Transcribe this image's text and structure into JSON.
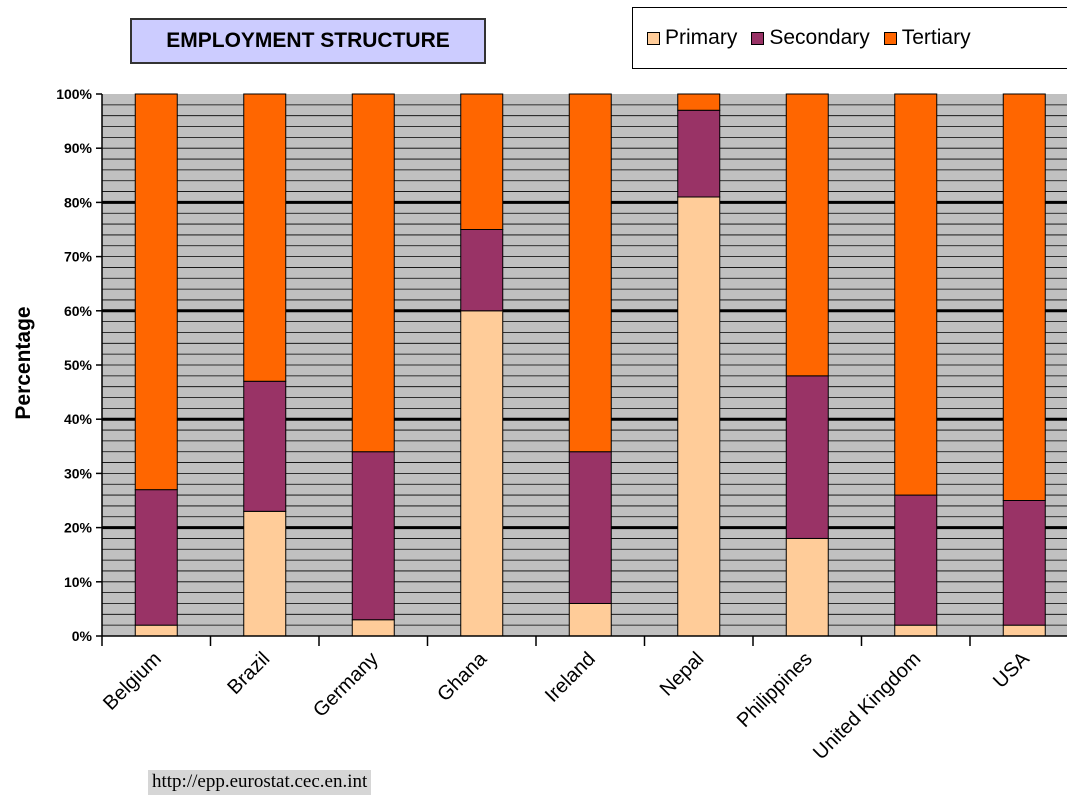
{
  "chart_data": {
    "type": "bar",
    "stacked": true,
    "title": "EMPLOYMENT STRUCTURE",
    "xlabel": "",
    "ylabel": "Percentage",
    "ylim": [
      0,
      100
    ],
    "y_ticks": [
      "0%",
      "10%",
      "20%",
      "30%",
      "40%",
      "50%",
      "60%",
      "70%",
      "80%",
      "90%",
      "100%"
    ],
    "categories": [
      "Belgium",
      "Brazil",
      "Germany",
      "Ghana",
      "Ireland",
      "Nepal",
      "Philippines",
      "United Kingdom",
      "USA"
    ],
    "series": [
      {
        "name": "Primary",
        "color": "#ffcc99",
        "values": [
          2,
          23,
          3,
          60,
          6,
          81,
          18,
          2,
          2
        ]
      },
      {
        "name": "Secondary",
        "color": "#993366",
        "values": [
          25,
          24,
          31,
          15,
          28,
          16,
          30,
          24,
          23
        ]
      },
      {
        "name": "Tertiary",
        "color": "#ff6600",
        "values": [
          73,
          53,
          66,
          25,
          66,
          3,
          52,
          74,
          75
        ]
      }
    ],
    "grid": true,
    "legend_position": "top-right",
    "plot_background": "#c0c0c0"
  },
  "source_text": "http://epp.eurostat.cec.en.int"
}
